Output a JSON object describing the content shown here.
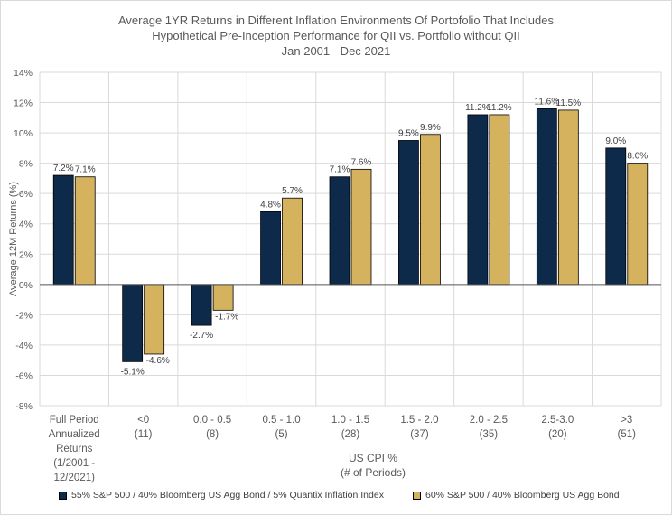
{
  "chart_data": {
    "type": "bar",
    "title": [
      "Average 1YR Returns in Different Inflation Environments Of Portofolio That Includes",
      "Hypothetical Pre-Inception Performance for QII vs. Portfolio without QII",
      "Jan 2001 - Dec 2021"
    ],
    "ylabel": "Average 12M Returns (%)",
    "xlabel": [
      "US CPI %",
      "(# of Periods)"
    ],
    "ylim": [
      -8,
      14
    ],
    "ytick_step": 2,
    "yticks": [
      "14%",
      "12%",
      "10%",
      "8%",
      "6%",
      "4%",
      "2%",
      "0%",
      "-2%",
      "-4%",
      "-6%",
      "-8%"
    ],
    "categories": [
      [
        "Full Period",
        "Annualized",
        "Returns",
        "(1/2001 -",
        "12/2021)"
      ],
      [
        "<0",
        "(11)"
      ],
      [
        "0.0 - 0.5",
        "(8)"
      ],
      [
        "0.5 - 1.0",
        "(5)"
      ],
      [
        "1.0 - 1.5",
        "(28)"
      ],
      [
        "1.5 - 2.0",
        "(37)"
      ],
      [
        "2.0 - 2.5",
        "(35)"
      ],
      [
        "2.5-3.0",
        "(20)"
      ],
      [
        ">3",
        "(51)"
      ]
    ],
    "series": [
      {
        "name": "55% S&P 500 / 40% Bloomberg US Agg Bond / 5% Quantix Inflation Index",
        "color": "#0e2a4a",
        "values": [
          7.2,
          -5.1,
          -2.7,
          4.8,
          7.1,
          9.5,
          11.2,
          11.6,
          9.0
        ],
        "labels": [
          "7.2%",
          "-5.1%",
          "-2.7%",
          "4.8%",
          "7.1%",
          "9.5%",
          "11.2%",
          "11.6%",
          "9.0%"
        ]
      },
      {
        "name": "60% S&P 500 / 40% Bloomberg US Agg Bond",
        "color": "#d4b25e",
        "values": [
          7.1,
          -4.6,
          -1.7,
          5.7,
          7.6,
          9.9,
          11.2,
          11.5,
          8.0
        ],
        "labels": [
          "7.1%",
          "-4.6%",
          "-1.7%",
          "5.7%",
          "7.6%",
          "9.9%",
          "11.2%",
          "11.5%",
          "8.0%"
        ]
      }
    ],
    "grid": true,
    "legend": "bottom"
  }
}
